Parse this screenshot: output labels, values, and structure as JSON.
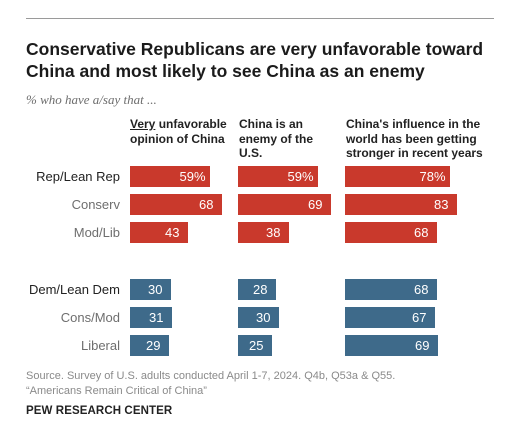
{
  "title": "Conservative Republicans are very unfavorable toward China and most likely to see China as an enemy",
  "subtitle": "% who have a/say that ...",
  "columns": [
    {
      "underlined": "Very",
      "rest": "unfavorable opinion of China"
    },
    {
      "underlined": "",
      "rest": "China is an enemy of the U.S."
    },
    {
      "underlined": "",
      "rest": "China's influence in the world has been getting stronger in recent years"
    }
  ],
  "source": {
    "line1": "Source. Survey of U.S. adults conducted April 1-7, 2024. Q4b, Q53a & Q55.",
    "line2": "“Americans Remain Critical of China”"
  },
  "org": "PEW RESEARCH CENTER",
  "colors": {
    "rep": "#c9392c",
    "dem": "#3e6a8a",
    "label_total": "#222222",
    "label_sub": "#6e6e6e"
  },
  "chart_data": {
    "type": "bar",
    "orientation": "horizontal",
    "unit": "%",
    "categories": [
      "Rep/Lean Rep",
      "Conserv",
      "Mod/Lib",
      "Dem/Lean Dem",
      "Cons/Mod",
      "Liberal"
    ],
    "series": [
      {
        "name": "Very unfavorable opinion of China",
        "values": [
          59,
          68,
          43,
          30,
          31,
          29
        ],
        "labels": [
          "59%",
          "68",
          "43",
          "30",
          "31",
          "29"
        ]
      },
      {
        "name": "China is an enemy of the U.S.",
        "values": [
          59,
          69,
          38,
          28,
          30,
          25
        ],
        "labels": [
          "59%",
          "69",
          "38",
          "28",
          "30",
          "25"
        ]
      },
      {
        "name": "China's influence in the world has been getting stronger in recent years",
        "values": [
          78,
          83,
          68,
          68,
          67,
          69
        ],
        "labels": [
          "78%",
          "83",
          "68",
          "68",
          "67",
          "69"
        ]
      }
    ],
    "groups": [
      {
        "name": "Rep/Lean Rep",
        "rows": [
          "Rep/Lean Rep",
          "Conserv",
          "Mod/Lib"
        ],
        "color": "#c9392c"
      },
      {
        "name": "Dem/Lean Dem",
        "rows": [
          "Dem/Lean Dem",
          "Cons/Mod",
          "Liberal"
        ],
        "color": "#3e6a8a"
      }
    ],
    "xlim": [
      0,
      100
    ]
  }
}
